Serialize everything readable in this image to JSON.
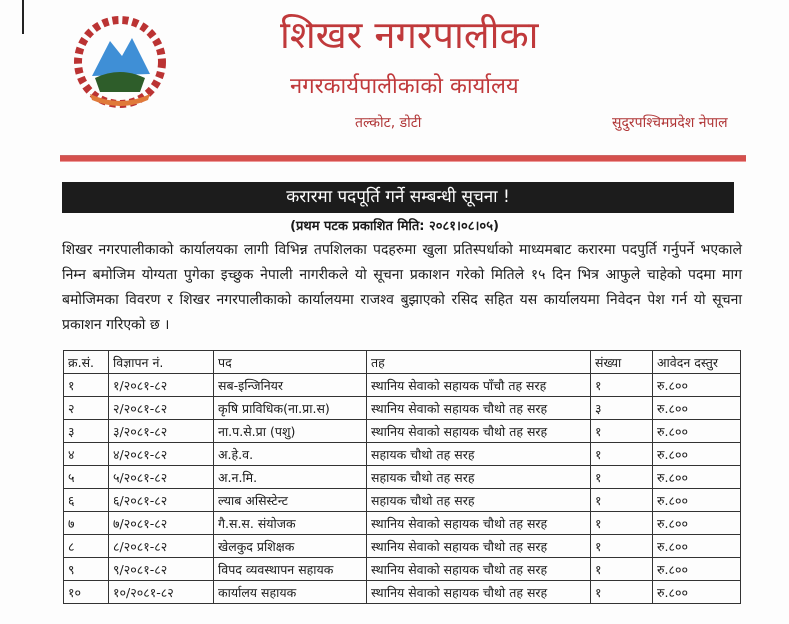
{
  "header": {
    "title": "शिखर नगरपालीका",
    "subtitle": "नगरकार्यपालीकाको कार्यालय",
    "location": "तल्कोट, डोटी",
    "province": "सुदुरपश्चिमप्रदेश नेपाल",
    "logo": "nepal-emblem"
  },
  "notice": {
    "heading": "करारमा पदपूर्ति गर्ने सम्बन्धी सूचना !",
    "published": "(प्रथम पटक प्रकाशित मिति: २०८१।०८।०५)",
    "body": "शिखर नगरपालीकाको कार्यालयका लागी विभिन्न तपशिलका पदहरुमा खुला प्रतिस्पर्धाको माध्यमबाट करारमा पदपुर्ति गर्नुपर्ने भएकाले निम्न बमोजिम योग्यता पुगेका इच्छुक नेपाली नागरीकले यो सूचना प्रकाशन गरेको मितिले १५ दिन भित्र आफुले चाहेको पदमा माग बमोजिमका विवरण र शिखर नगरपालीकाको कार्यालयमा राजश्व बुझाएको रसिद सहित यस कार्यालयमा निवेदन पेश गर्न यो सूचना प्रकाशन गरिएको छ ।"
  },
  "table": {
    "headers": [
      "क्र.सं.",
      "विज्ञापन नं.",
      "पद",
      "तह",
      "संख्या",
      "आवेदन दस्तुर"
    ],
    "rows": [
      [
        "१",
        "१/२०८१-८२",
        "सब-इन्जिनियर",
        "स्थानिय सेवाको सहायक पाँचौ तह सरह",
        "१",
        "रु.८००"
      ],
      [
        "२",
        "२/२०८१-८२",
        "कृषि प्राविधिक(ना.प्रा.स)",
        "स्थानिय सेवाको सहायक चौथो तह सरह",
        "३",
        "रु.८००"
      ],
      [
        "३",
        "३/२०८१-८२",
        "ना.प.से.प्रा (पशु)",
        "स्थानिय सेवाको सहायक चौथो तह सरह",
        "१",
        "रु.८००"
      ],
      [
        "४",
        "४/२०८१-८२",
        "अ.हे.व.",
        "सहायक चौथो तह सरह",
        "१",
        "रु.८००"
      ],
      [
        "५",
        "५/२०८१-८२",
        "अ.न.मि.",
        "सहायक चौथो तह सरह",
        "१",
        "रु.८००"
      ],
      [
        "६",
        "६/२०८१-८२",
        "ल्याब असिस्टेन्ट",
        "सहायक चौथो तह सरह",
        "१",
        "रु.८००"
      ],
      [
        "७",
        "७/२०८१-८२",
        "गै.स.स. संयोजक",
        "स्थानिय सेवाको सहायक चौथो तह सरह",
        "१",
        "रु.८००"
      ],
      [
        "८",
        "८/२०८१-८२",
        "खेलकुद प्रशिक्षक",
        "स्थानिय सेवाको सहायक चौथो तह सरह",
        "१",
        "रु.८००"
      ],
      [
        "९",
        "९/२०८१-८२",
        "विपद व्यवस्थापन सहायक",
        "स्थानिय सेवाको सहायक चौथो तह सरह",
        "१",
        "रु.८००"
      ],
      [
        "१०",
        "१०/२०८१-८२",
        "कार्यालय सहायक",
        "स्थानिय सेवाको सहायक चौथो तह सरह",
        "१",
        "रु.८००"
      ]
    ]
  }
}
